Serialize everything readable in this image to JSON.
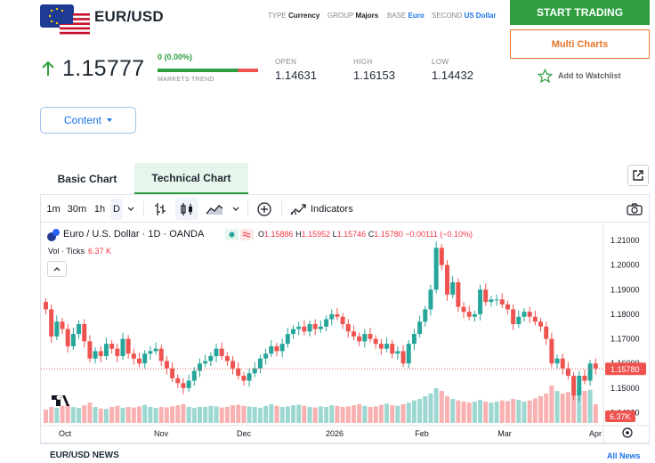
{
  "header": {
    "pair": "EUR/USD",
    "meta": [
      {
        "label": "TYPE",
        "value": "Currency"
      },
      {
        "label": "GROUP",
        "value": "Majors"
      },
      {
        "label": "BASE",
        "value": "Euro"
      },
      {
        "label": "SECOND",
        "value": "US Dollar"
      }
    ],
    "start_trading": "START TRADING",
    "multi_charts": "Multi Charts",
    "price": "1.15777",
    "change": "0 (0.00%)",
    "markets_trend_label": "MARKETS TREND",
    "markets_trend_up": 0.8,
    "stats": [
      {
        "label": "OPEN",
        "value": "1.14631"
      },
      {
        "label": "HIGH",
        "value": "1.16153"
      },
      {
        "label": "LOW",
        "value": "1.14432"
      }
    ],
    "watchlist": "Add to Watchlist",
    "content_button": "Content"
  },
  "tabs": {
    "basic": "Basic Chart",
    "technical": "Technical Chart"
  },
  "toolbar": {
    "intervals": [
      "1m",
      "30m",
      "1h",
      "D"
    ],
    "indicators": "Indicators"
  },
  "chart_legend": {
    "title": "Euro / U.S. Dollar · 1D · OANDA",
    "o_label": "O",
    "o": "1.15886",
    "h_label": "H",
    "h": "1.15952",
    "l_label": "L",
    "l": "1.15746",
    "c_label": "C",
    "c": "1.15780",
    "chg": "−0.00111 (−0.10%)",
    "vol_label": "Vol · Ticks",
    "vol_value": "6.37 K"
  },
  "chart_data": {
    "type": "candlestick",
    "y_ticks": [
      "1.21000",
      "1.20000",
      "1.19000",
      "1.18000",
      "1.17000",
      "1.16000",
      "1.15000",
      "1.14000"
    ],
    "ylim": [
      1.138,
      1.214
    ],
    "x_ticks": [
      "Oct",
      "Nov",
      "Dec",
      "2026",
      "Feb",
      "Mar",
      "Apr"
    ],
    "last_price": "1.15780",
    "last_volume": "6.37K",
    "closes": [
      1.182,
      1.171,
      1.177,
      1.174,
      1.167,
      1.172,
      1.176,
      1.169,
      1.162,
      1.165,
      1.163,
      1.168,
      1.166,
      1.163,
      1.17,
      1.164,
      1.162,
      1.16,
      1.164,
      1.165,
      1.166,
      1.161,
      1.158,
      1.154,
      1.152,
      1.15,
      1.153,
      1.157,
      1.16,
      1.161,
      1.163,
      1.166,
      1.163,
      1.161,
      1.158,
      1.155,
      1.153,
      1.156,
      1.158,
      1.162,
      1.164,
      1.167,
      1.165,
      1.168,
      1.172,
      1.174,
      1.175,
      1.173,
      1.176,
      1.174,
      1.175,
      1.178,
      1.18,
      1.179,
      1.176,
      1.173,
      1.171,
      1.169,
      1.172,
      1.17,
      1.168,
      1.166,
      1.168,
      1.164,
      1.165,
      1.16,
      1.168,
      1.172,
      1.177,
      1.182,
      1.19,
      1.207,
      1.2,
      1.188,
      1.193,
      1.183,
      1.181,
      1.179,
      1.18,
      1.19,
      1.185,
      1.186,
      1.186,
      1.184,
      1.182,
      1.176,
      1.179,
      1.181,
      1.179,
      1.177,
      1.175,
      1.17,
      1.16,
      1.162,
      1.158,
      1.155,
      1.147,
      1.155,
      1.153,
      1.16,
      1.158
    ],
    "volumes": [
      0.25,
      0.3,
      0.28,
      0.32,
      0.35,
      0.3,
      0.28,
      0.33,
      0.38,
      0.3,
      0.27,
      0.26,
      0.3,
      0.32,
      0.28,
      0.3,
      0.29,
      0.31,
      0.34,
      0.3,
      0.28,
      0.3,
      0.29,
      0.31,
      0.33,
      0.35,
      0.3,
      0.28,
      0.3,
      0.3,
      0.32,
      0.31,
      0.29,
      0.3,
      0.33,
      0.34,
      0.32,
      0.31,
      0.3,
      0.28,
      0.32,
      0.35,
      0.32,
      0.3,
      0.31,
      0.33,
      0.34,
      0.32,
      0.3,
      0.29,
      0.31,
      0.3,
      0.33,
      0.32,
      0.3,
      0.31,
      0.33,
      0.35,
      0.32,
      0.3,
      0.31,
      0.34,
      0.36,
      0.33,
      0.32,
      0.35,
      0.38,
      0.42,
      0.45,
      0.5,
      0.55,
      0.65,
      0.6,
      0.5,
      0.45,
      0.42,
      0.4,
      0.38,
      0.4,
      0.43,
      0.4,
      0.38,
      0.4,
      0.42,
      0.41,
      0.45,
      0.43,
      0.4,
      0.42,
      0.46,
      0.5,
      0.55,
      0.7,
      0.6,
      0.55,
      0.58,
      0.7,
      0.65,
      0.6,
      0.62,
      0.35
    ]
  },
  "colors": {
    "up": "#26a69a",
    "down": "#ef5350",
    "brand_green": "#2e9e3f",
    "brand_orange": "#e8752a",
    "link_blue": "#1a73e8"
  },
  "news": {
    "title": "EUR/USD NEWS",
    "all": "All News"
  }
}
